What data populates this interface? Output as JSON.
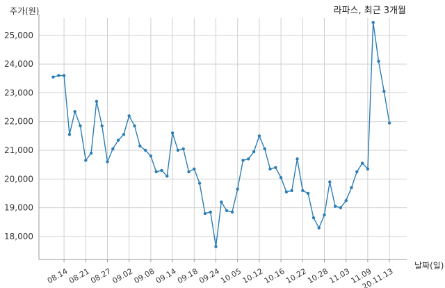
{
  "chart_data": {
    "type": "line",
    "title": "라파스, 최근 3개월",
    "ylabel": "주가(원)",
    "xlabel": "날짜(일)",
    "ylim": [
      17200,
      25600
    ],
    "grid": true,
    "yticks": [
      18000,
      19000,
      20000,
      21000,
      22000,
      23000,
      24000,
      25000
    ],
    "ytick_labels": [
      "18,000",
      "19,000",
      "20,000",
      "21,000",
      "22,000",
      "23,000",
      "24,000",
      "25,000"
    ],
    "xtick_labels": [
      "08.14",
      "08.21",
      "08.27",
      "09.02",
      "09.08",
      "09.14",
      "09.18",
      "09.24",
      "10.05",
      "10.12",
      "10.16",
      "10.22",
      "10.28",
      "11.03",
      "11.09",
      "20.11.13"
    ],
    "xtick_positions": [
      2,
      6,
      10,
      14,
      18,
      22,
      26,
      30,
      34,
      38,
      42,
      46,
      50,
      54,
      58,
      62
    ],
    "color": "#2a7db5",
    "series": [
      {
        "values": [
          23550,
          23600,
          23600,
          21550,
          22350,
          21850,
          20650,
          20900,
          22700,
          21850,
          20600,
          21050,
          21350,
          21550,
          22200,
          21850,
          21150,
          21000,
          20800,
          20250,
          20300,
          20100,
          21600,
          21000,
          21050,
          20250,
          20350,
          19850,
          18800,
          18850,
          17650,
          19200,
          18900,
          18850,
          19650,
          20650,
          20700,
          20950,
          21500,
          21050,
          20350,
          20400,
          20050,
          19550,
          19600,
          20700,
          19600,
          19500,
          18650,
          18300,
          18750,
          19900,
          19050,
          19000,
          19250,
          19700,
          20250,
          20550,
          20350,
          25450,
          24100,
          23050,
          21950
        ]
      }
    ]
  }
}
